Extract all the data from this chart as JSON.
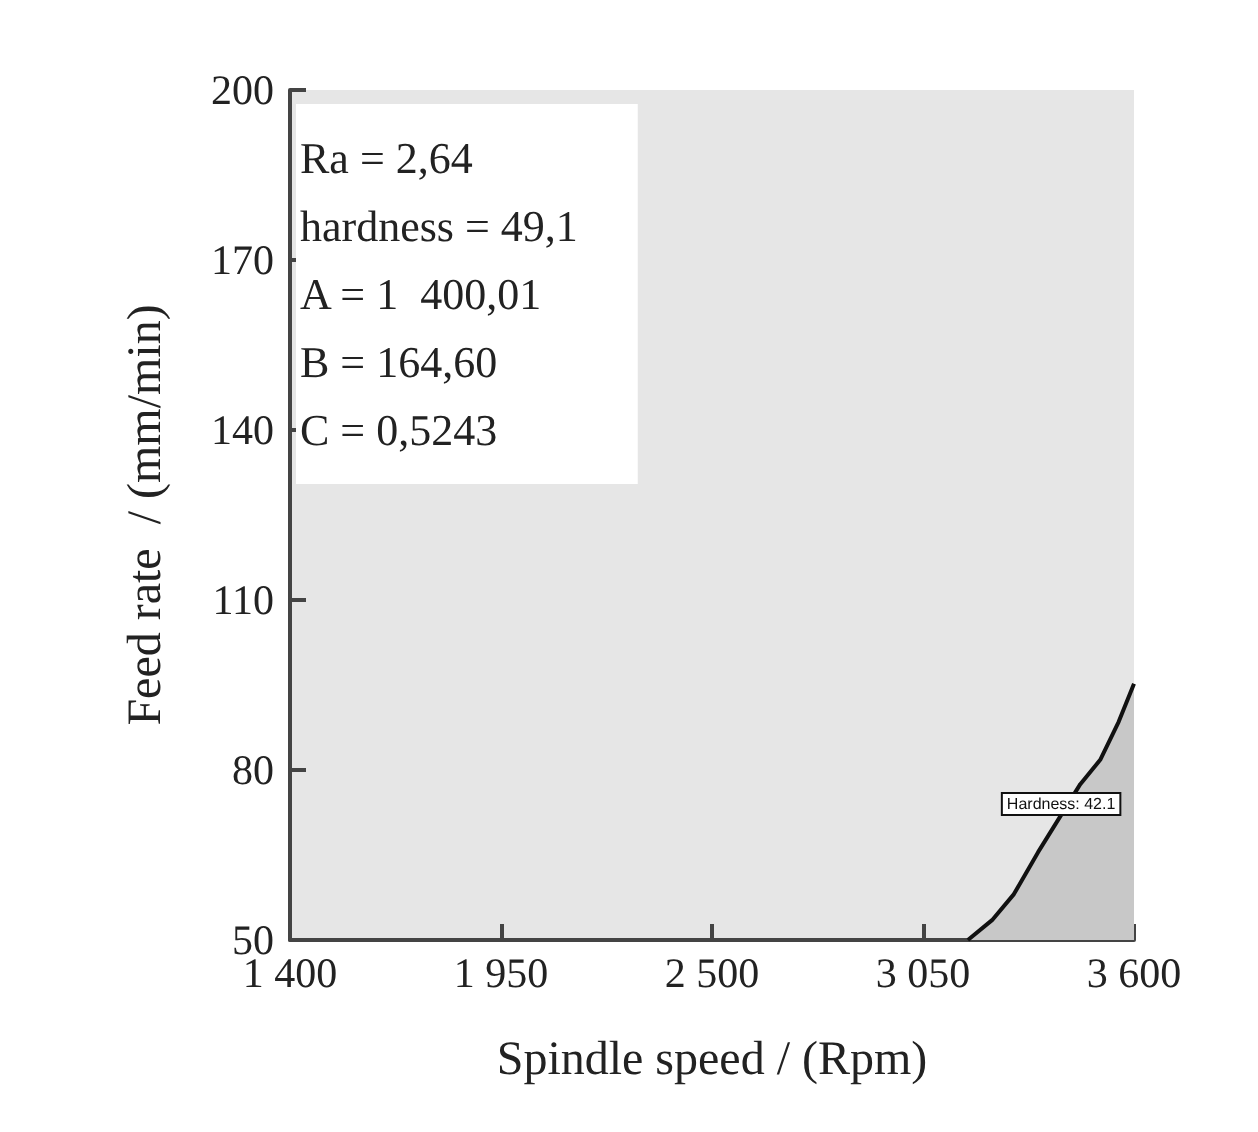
{
  "chart_data": {
    "type": "area",
    "xlabel": "Spindle speed / (Rpm)",
    "ylabel": "Feed rate  / (mm/min)",
    "x": [
      3167,
      3230,
      3287,
      3350,
      3460,
      3512,
      3560,
      3600
    ],
    "series": [
      {
        "color": "#c8c8c8",
        "values": [
          50,
          53.5,
          58.1,
          65.5,
          77.5,
          81.8,
          88.5,
          95.2
        ]
      }
    ],
    "xlim": [
      1400,
      3600
    ],
    "xticks": [
      {
        "value": 1400,
        "label": "1 400"
      },
      {
        "value": 1950,
        "label": "1 950"
      },
      {
        "value": 2500,
        "label": "2 500"
      },
      {
        "value": 3050,
        "label": "3 050"
      },
      {
        "value": 3600,
        "label": "3 600"
      }
    ],
    "ylim": [
      50,
      200
    ],
    "yticks": [
      50,
      80,
      110,
      140,
      170,
      200
    ],
    "annotations": [
      "Ra = 2,64",
      "hardness = 49,1",
      "A = 1  400,01",
      "B = 164,60",
      "C = 0,5243",
      {
        "text": "Hardness: 42.1",
        "x": 3410,
        "y": 74
      }
    ],
    "grid": false
  }
}
